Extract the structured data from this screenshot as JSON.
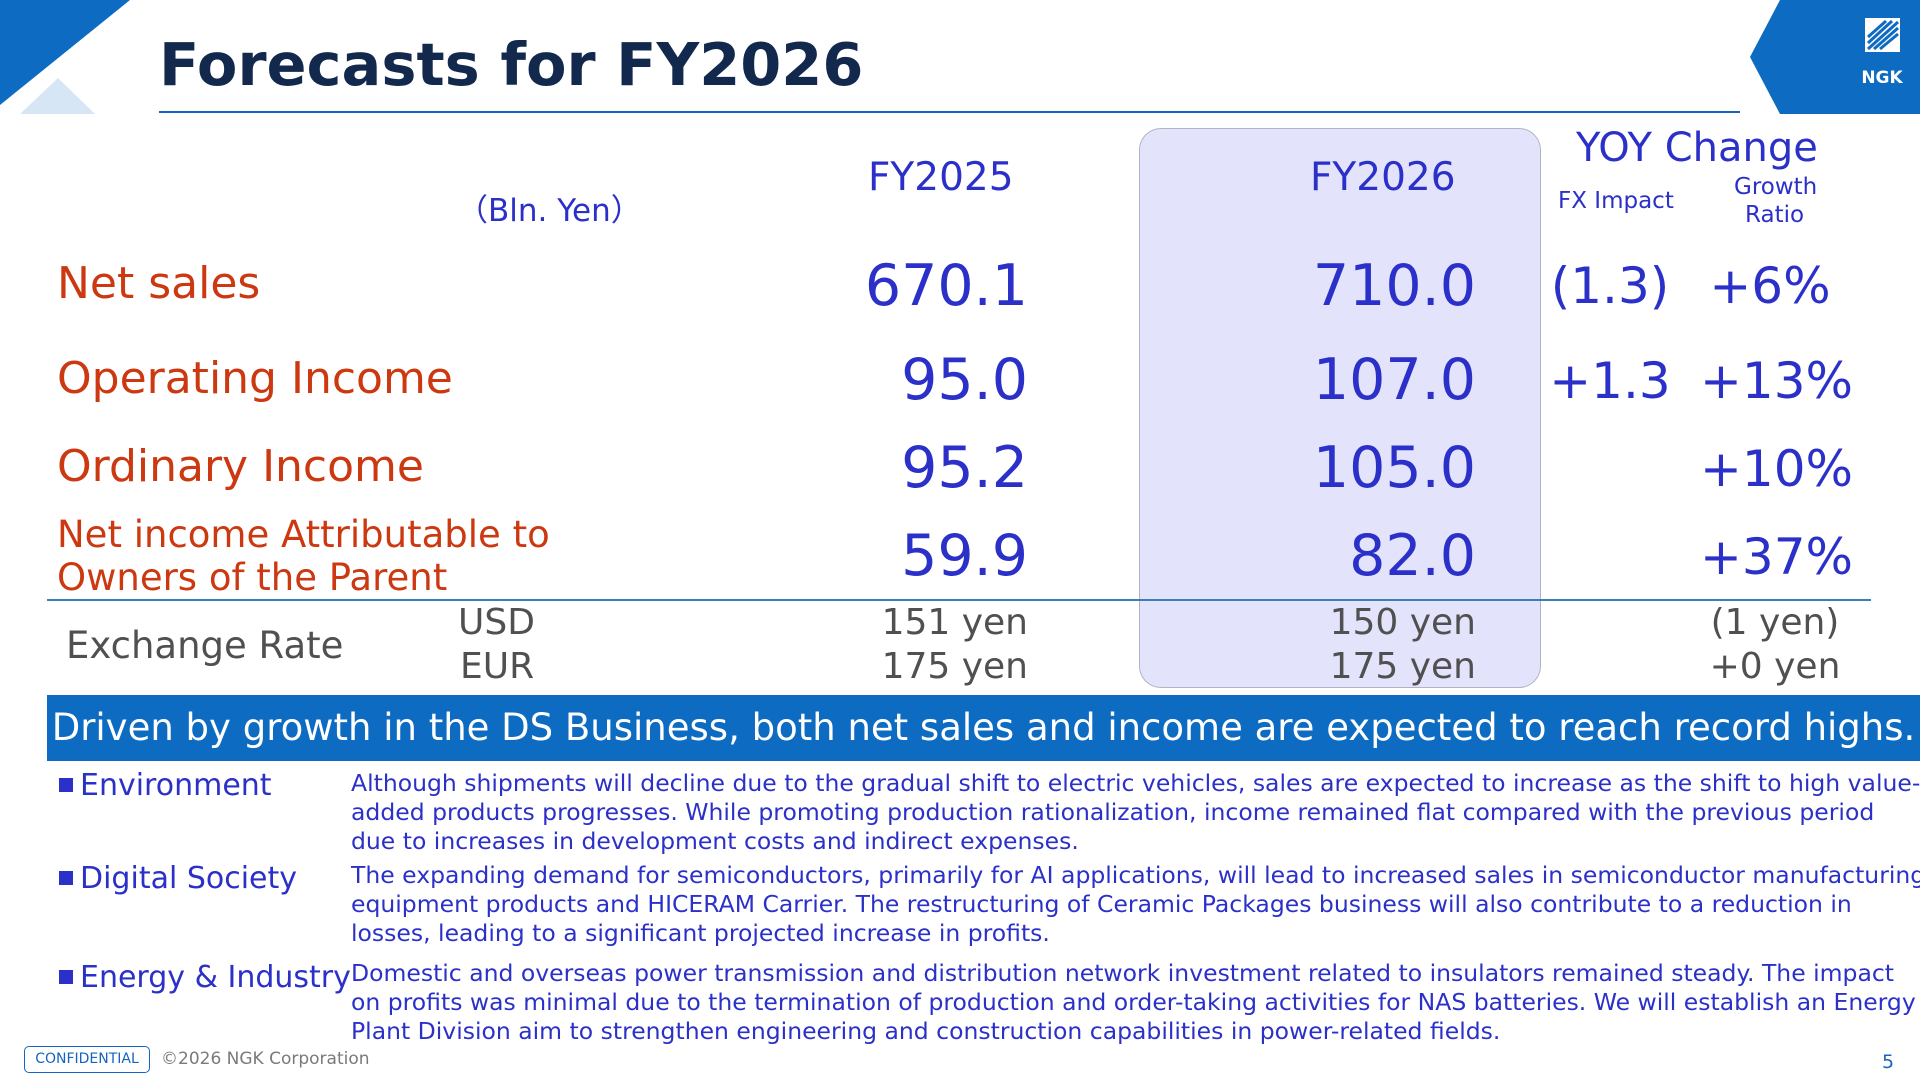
{
  "page": {
    "title": "Forecasts for FY2026",
    "brand_color": "#0d6bc2",
    "title_color": "#13284d",
    "accent_text_color": "#2b30c8",
    "label_color": "#cc3810"
  },
  "logo": {
    "text": "NGK",
    "icon": "ngk-logo-icon"
  },
  "table": {
    "unit": "（Bln. Yen）",
    "columns": {
      "fy2025": "FY2025",
      "fy2026": "FY2026",
      "yoy": "YOY Change",
      "fx_impact": "FX Impact",
      "growth_ratio_1": "Growth",
      "growth_ratio_2": "Ratio"
    },
    "rows": [
      {
        "label": "Net sales",
        "fy2025": "670.1",
        "fy2026": "710.0",
        "fx_impact": "(1.3)",
        "growth": "+6%"
      },
      {
        "label": "Operating Income",
        "fy2025": "95.0",
        "fy2026": "107.0",
        "fx_impact": "+1.3",
        "growth": "+13%"
      },
      {
        "label": "Ordinary Income",
        "fy2025": "95.2",
        "fy2026": "105.0",
        "fx_impact": "",
        "growth": "+10%"
      },
      {
        "label_line1": "Net income Attributable to",
        "label_line2": "Owners of the Parent",
        "fy2025": "59.9",
        "fy2026": "82.0",
        "fx_impact": "",
        "growth": "+37%"
      }
    ],
    "exchange": {
      "label": "Exchange Rate",
      "usd": {
        "currency": "USD",
        "fy2025": "151 yen",
        "fy2026": "150 yen",
        "change": "(1 yen)"
      },
      "eur": {
        "currency": "EUR",
        "fy2025": "175 yen",
        "fy2026": "175 yen",
        "change": "+0 yen"
      }
    }
  },
  "banner": "Driven by growth in the DS Business, both net sales and income are expected to reach record highs.",
  "segments": [
    {
      "label": "Environment",
      "lines": [
        "Although shipments will decline due to the gradual shift to electric vehicles, sales are expected to increase as the shift to high value-",
        "added products progresses. While promoting production rationalization, income remained flat compared with the previous period",
        "due to increases in development costs and indirect expenses."
      ]
    },
    {
      "label": "Digital Society",
      "lines": [
        "The expanding demand for semiconductors, primarily for AI applications, will lead to increased sales in semiconductor manufacturing",
        "equipment products and HICERAM Carrier. The restructuring of Ceramic Packages business will also contribute to a reduction in",
        "losses, leading to a significant projected increase in profits."
      ]
    },
    {
      "label": "Energy & Industry",
      "lines": [
        "Domestic and overseas power transmission and distribution network investment  related to insulators remained steady. The impact",
        "on profits was minimal due to the termination of production and order-taking activities for NAS batteries. We will establish an Energy",
        "Plant Division  aim to strengthen engineering and construction capabilities in power-related fields."
      ]
    }
  ],
  "footer": {
    "confidential": "CONFIDENTIAL",
    "copyright": "©2026 NGK Corporation",
    "page_number": "5"
  }
}
